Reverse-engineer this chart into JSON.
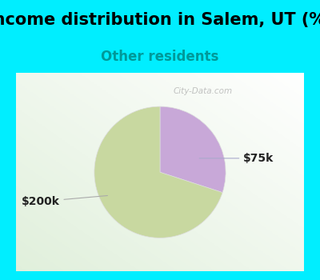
{
  "title": "Income distribution in Salem, UT (%)",
  "subtitle": "Other residents",
  "title_fontsize": 15,
  "subtitle_fontsize": 12,
  "title_color": "#000000",
  "subtitle_color": "#009999",
  "outer_bg_color": "#00eeff",
  "chart_panel_color": "#e8f5ee",
  "slices": [
    {
      "label": "$75k",
      "value": 30,
      "color": "#c8a8d8"
    },
    {
      "label": "$200k",
      "value": 70,
      "color": "#c8d8a0"
    }
  ],
  "label_fontsize": 10,
  "label_color": "#222222",
  "startangle": 90,
  "watermark": "City-Data.com"
}
